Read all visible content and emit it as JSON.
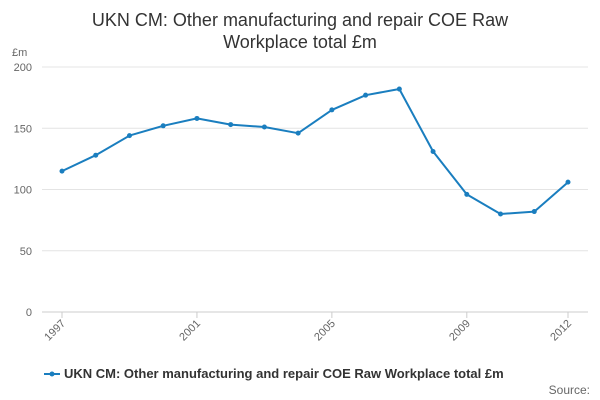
{
  "chart_data": {
    "type": "line",
    "title_lines": [
      "UKN CM: Other manufacturing and repair COE Raw",
      "Workplace total £m"
    ],
    "ylabel": "£m",
    "ylim": [
      0,
      200
    ],
    "yticks": [
      0,
      50,
      100,
      150,
      200
    ],
    "xlim": [
      1997,
      2012
    ],
    "xticks": [
      1997,
      2001,
      2005,
      2009,
      2012
    ],
    "grid": true,
    "legend_position": "bottom",
    "color": "#1a7ebf",
    "series": [
      {
        "name": "UKN CM: Other manufacturing and repair COE Raw Workplace total £m",
        "x": [
          1997,
          1998,
          1999,
          2000,
          2001,
          2002,
          2003,
          2004,
          2005,
          2006,
          2007,
          2008,
          2009,
          2010,
          2011,
          2012
        ],
        "values": [
          115,
          128,
          144,
          152,
          158,
          153,
          151,
          146,
          165,
          177,
          182,
          131,
          96,
          80,
          82,
          106
        ]
      }
    ]
  },
  "source_label": "Source:"
}
